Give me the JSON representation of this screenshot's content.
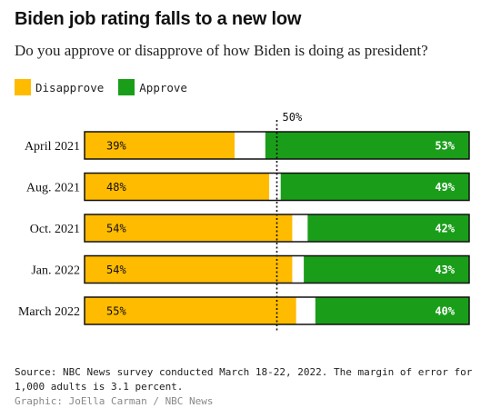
{
  "chart_data": {
    "type": "bar",
    "title": "Biden job rating falls to a new low",
    "subtitle": "Do you approve or disapprove of how Biden is doing as president?",
    "categories": [
      "April 2021",
      "Aug. 2021",
      "Oct. 2021",
      "Jan. 2022",
      "March 2022"
    ],
    "series": [
      {
        "name": "Disapprove",
        "values": [
          39,
          48,
          54,
          54,
          55
        ]
      },
      {
        "name": "Approve",
        "values": [
          53,
          49,
          42,
          43,
          40
        ]
      }
    ],
    "value_labels": {
      "disapprove": [
        "39%",
        "48%",
        "54%",
        "54%",
        "55%"
      ],
      "approve": [
        "53%",
        "49%",
        "42%",
        "43%",
        "40%"
      ]
    },
    "reference_line": {
      "value": 50,
      "label": "50%"
    },
    "xlim": [
      0,
      100
    ],
    "stacked": true,
    "orientation": "horizontal",
    "legend_position": "top-left",
    "grid": false,
    "colors": {
      "disapprove": "#FFBB00",
      "approve": "#1A9E1A",
      "neutral": "#FFFFFF",
      "outline": "#111111"
    }
  },
  "source": "Source: NBC News survey conducted March 18-22, 2022. The margin of error for 1,000 adults is 3.1 percent.",
  "credit": "Graphic: JoElla Carman / NBC News"
}
